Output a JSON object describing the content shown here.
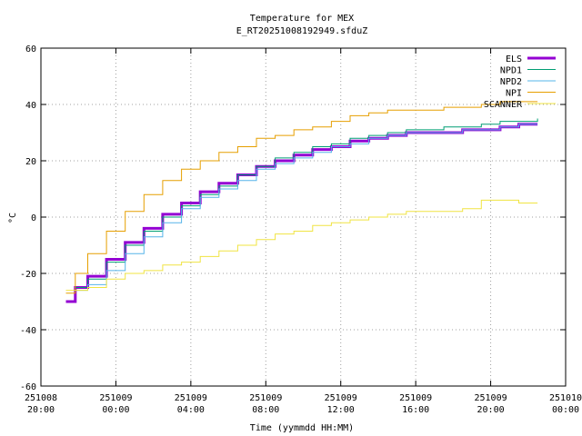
{
  "chart_data": {
    "type": "line",
    "title": "Temperature for MEX",
    "subtitle": "E_RT20251008192949.sfduZ",
    "xlabel": "Time (yymmdd HH:MM)",
    "ylabel": "°C",
    "ylim": [
      -60,
      60
    ],
    "yticks": [
      "60",
      "40",
      "20",
      "0",
      "-20",
      "-40",
      "-60"
    ],
    "xlim_hours": [
      0,
      28
    ],
    "xticks": [
      {
        "date": "251008",
        "time": "20:00"
      },
      {
        "date": "251009",
        "time": "00:00"
      },
      {
        "date": "251009",
        "time": "04:00"
      },
      {
        "date": "251009",
        "time": "08:00"
      },
      {
        "date": "251009",
        "time": "12:00"
      },
      {
        "date": "251009",
        "time": "16:00"
      },
      {
        "date": "251009",
        "time": "20:00"
      },
      {
        "date": "251010",
        "time": "00:00"
      }
    ],
    "grid": true,
    "legend_position": "top-right",
    "series": [
      {
        "name": "ELS",
        "color": "#9400d3",
        "width": 3,
        "x": [
          "251008 21:20",
          "251008 21:50",
          "251008 22:30",
          "251008 23:30",
          "251009 00:30",
          "251009 01:30",
          "251009 02:30",
          "251009 03:30",
          "251009 04:30",
          "251009 05:30",
          "251009 06:30",
          "251009 07:30",
          "251009 08:30",
          "251009 09:30",
          "251009 10:30",
          "251009 11:30",
          "251009 12:30",
          "251009 13:30",
          "251009 14:30",
          "251009 15:30",
          "251009 16:30",
          "251009 17:30",
          "251009 18:30",
          "251009 19:30",
          "251009 20:30",
          "251009 21:30",
          "251009 22:30"
        ],
        "y": [
          -30,
          -25,
          -21,
          -15,
          -9,
          -4,
          1,
          5,
          9,
          12,
          15,
          18,
          20,
          22,
          24,
          25,
          27,
          28,
          29,
          30,
          30,
          30,
          31,
          31,
          32,
          33,
          33
        ]
      },
      {
        "name": "NPD1",
        "color": "#009e73",
        "width": 1,
        "x": [
          "251008 21:50",
          "251008 22:30",
          "251008 23:30",
          "251009 00:30",
          "251009 01:30",
          "251009 02:30",
          "251009 03:30",
          "251009 04:30",
          "251009 05:30",
          "251009 06:30",
          "251009 07:30",
          "251009 08:30",
          "251009 09:30",
          "251009 10:30",
          "251009 11:30",
          "251009 12:30",
          "251009 13:30",
          "251009 14:30",
          "251009 15:30",
          "251009 16:30",
          "251009 17:30",
          "251009 18:30",
          "251009 19:30",
          "251009 20:30",
          "251009 21:30",
          "251009 22:30"
        ],
        "y": [
          -25,
          -22,
          -16,
          -10,
          -5,
          0,
          4,
          8,
          11,
          15,
          18,
          21,
          23,
          25,
          26,
          28,
          29,
          30,
          31,
          31,
          32,
          32,
          33,
          34,
          34,
          35
        ]
      },
      {
        "name": "NPD2",
        "color": "#56b4e9",
        "width": 1,
        "x": [
          "251008 21:50",
          "251008 22:30",
          "251008 23:30",
          "251009 00:30",
          "251009 01:30",
          "251009 02:30",
          "251009 03:30",
          "251009 04:30",
          "251009 05:30",
          "251009 06:30",
          "251009 07:30",
          "251009 08:30",
          "251009 09:30",
          "251009 10:30",
          "251009 11:30",
          "251009 12:30",
          "251009 13:30",
          "251009 14:30",
          "251009 15:30",
          "251009 16:30",
          "251009 17:30",
          "251009 18:30",
          "251009 19:30",
          "251009 20:30",
          "251009 21:30",
          "251009 22:30"
        ],
        "y": [
          -26,
          -24,
          -19,
          -13,
          -7,
          -2,
          3,
          7,
          10,
          13,
          17,
          19,
          21,
          23,
          25,
          26,
          28,
          29,
          30,
          30,
          30,
          31,
          31,
          32,
          33,
          33
        ]
      },
      {
        "name": "NPI",
        "color": "#e69f00",
        "width": 1,
        "x": [
          "251008 21:20",
          "251008 21:50",
          "251008 22:30",
          "251008 23:30",
          "251009 00:30",
          "251009 01:30",
          "251009 02:30",
          "251009 03:30",
          "251009 04:30",
          "251009 05:30",
          "251009 06:30",
          "251009 07:30",
          "251009 08:30",
          "251009 09:30",
          "251009 10:30",
          "251009 11:30",
          "251009 12:30",
          "251009 13:30",
          "251009 14:30",
          "251009 15:30",
          "251009 16:30",
          "251009 17:30",
          "251009 18:30",
          "251009 19:30",
          "251009 20:30",
          "251009 21:30",
          "251009 22:30"
        ],
        "y": [
          -27,
          -20,
          -13,
          -5,
          2,
          8,
          13,
          17,
          20,
          23,
          25,
          28,
          29,
          31,
          32,
          34,
          36,
          37,
          38,
          38,
          38,
          39,
          39,
          40,
          41,
          41,
          41
        ]
      },
      {
        "name": "SCANNER",
        "color": "#f0e442",
        "width": 1,
        "x": [
          "251008 21:20",
          "251008 22:30",
          "251008 23:30",
          "251009 00:30",
          "251009 01:30",
          "251009 02:30",
          "251009 03:30",
          "251009 04:30",
          "251009 05:30",
          "251009 06:30",
          "251009 07:30",
          "251009 08:30",
          "251009 09:30",
          "251009 10:30",
          "251009 11:30",
          "251009 12:30",
          "251009 13:30",
          "251009 14:30",
          "251009 15:30",
          "251009 16:30",
          "251009 17:30",
          "251009 18:30",
          "251009 19:30",
          "251009 20:30",
          "251009 21:30",
          "251009 22:30"
        ],
        "y": [
          -26,
          -25,
          -22,
          -20,
          -19,
          -17,
          -16,
          -14,
          -12,
          -10,
          -8,
          -6,
          -5,
          -3,
          -2,
          -1,
          0,
          1,
          2,
          2,
          2,
          3,
          6,
          6,
          5,
          5
        ]
      }
    ]
  }
}
